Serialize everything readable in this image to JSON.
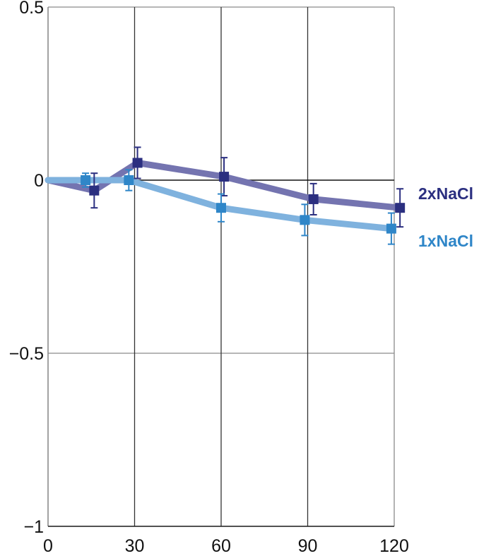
{
  "chart_data": {
    "type": "line",
    "title": "",
    "xlabel": "",
    "ylabel": "",
    "x": [
      0,
      13,
      16,
      28,
      31,
      60,
      61,
      89,
      92,
      119,
      122
    ],
    "xlim": [
      0,
      120
    ],
    "ylim": [
      -1,
      0.5
    ],
    "xticks": [
      0,
      30,
      60,
      90,
      120
    ],
    "xtick_labels": [
      "0",
      "30",
      "60",
      "90",
      "120"
    ],
    "yticks": [
      0.5,
      0,
      -0.5,
      -1
    ],
    "ytick_labels": [
      "0.5",
      "0",
      "−0.5",
      "−1"
    ],
    "grid": true,
    "zero_line": true,
    "series": [
      {
        "name": "2xNaCl",
        "color": "#2b2f80",
        "line_color": "#7474b0",
        "points": [
          {
            "x": 0,
            "y": 0,
            "marker": false
          },
          {
            "x": 16,
            "y": -0.03,
            "err": 0.05,
            "marker": true
          },
          {
            "x": 31,
            "y": 0.05,
            "err": 0.045,
            "marker": true
          },
          {
            "x": 61,
            "y": 0.01,
            "err": 0.055,
            "marker": true
          },
          {
            "x": 92,
            "y": -0.055,
            "err": 0.045,
            "marker": true
          },
          {
            "x": 122,
            "y": -0.08,
            "err": 0.055,
            "marker": true
          }
        ]
      },
      {
        "name": "1xNaCl",
        "color": "#2f86c8",
        "line_color": "#7fb2de",
        "points": [
          {
            "x": 0,
            "y": 0,
            "marker": false
          },
          {
            "x": 13,
            "y": 0,
            "err": 0.02,
            "marker": true
          },
          {
            "x": 28,
            "y": 0,
            "err": 0.03,
            "marker": true
          },
          {
            "x": 60,
            "y": -0.08,
            "err": 0.04,
            "marker": true
          },
          {
            "x": 89,
            "y": -0.115,
            "err": 0.045,
            "marker": true
          },
          {
            "x": 119,
            "y": -0.14,
            "err": 0.045,
            "marker": true
          }
        ]
      }
    ]
  }
}
